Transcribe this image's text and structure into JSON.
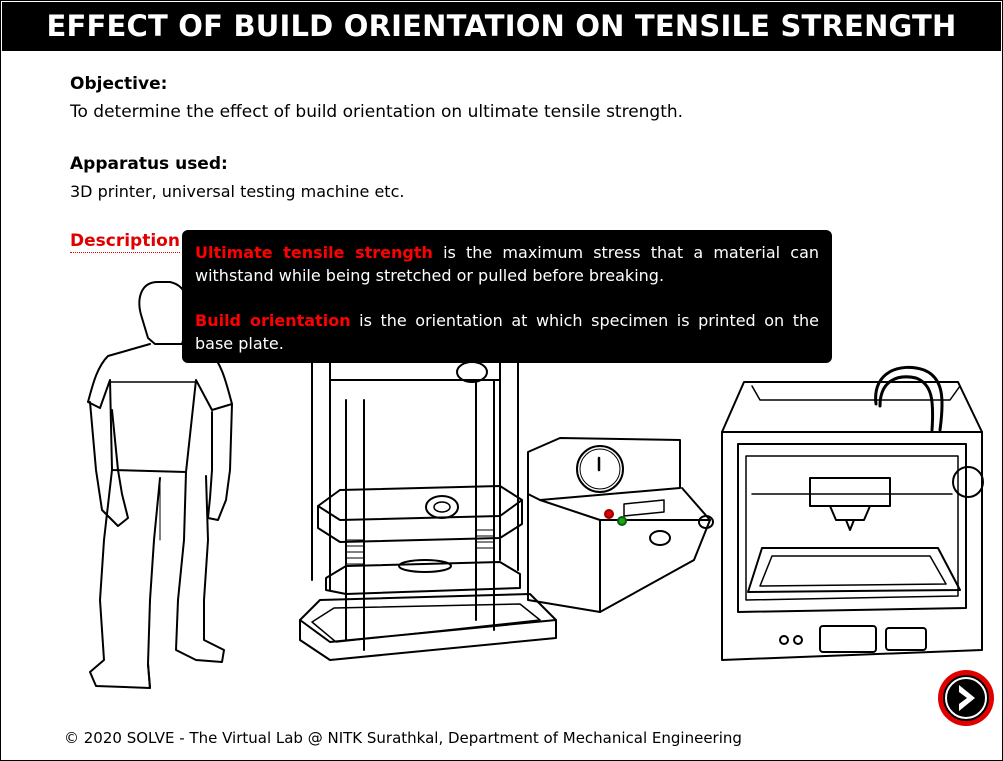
{
  "title": "EFFECT OF BUILD ORIENTATION ON TENSILE STRENGTH",
  "objective": {
    "heading": "Objective:",
    "text": "To determine the effect of build orientation on ultimate tensile strength."
  },
  "apparatus": {
    "heading": "Apparatus used:",
    "text": "3D printer, universal testing machine etc."
  },
  "description": {
    "link_label": "Description"
  },
  "tooltip": {
    "term1": "Ultimate tensile strength",
    "def1": " is the maximum stress that a material can withstand while being stretched or pulled before breaking.",
    "term2": "Build orientation",
    "def2": " is the orientation at which specimen is printed on the base plate."
  },
  "footer": "© 2020 SOLVE - The Virtual Lab @ NITK Surathkal, Department of Mechanical Engineering",
  "next_button": {
    "icon": "chevron-right-icon",
    "ring_color": "#e00000"
  },
  "colors": {
    "accent": "#e00000",
    "title_bg": "#000000"
  }
}
